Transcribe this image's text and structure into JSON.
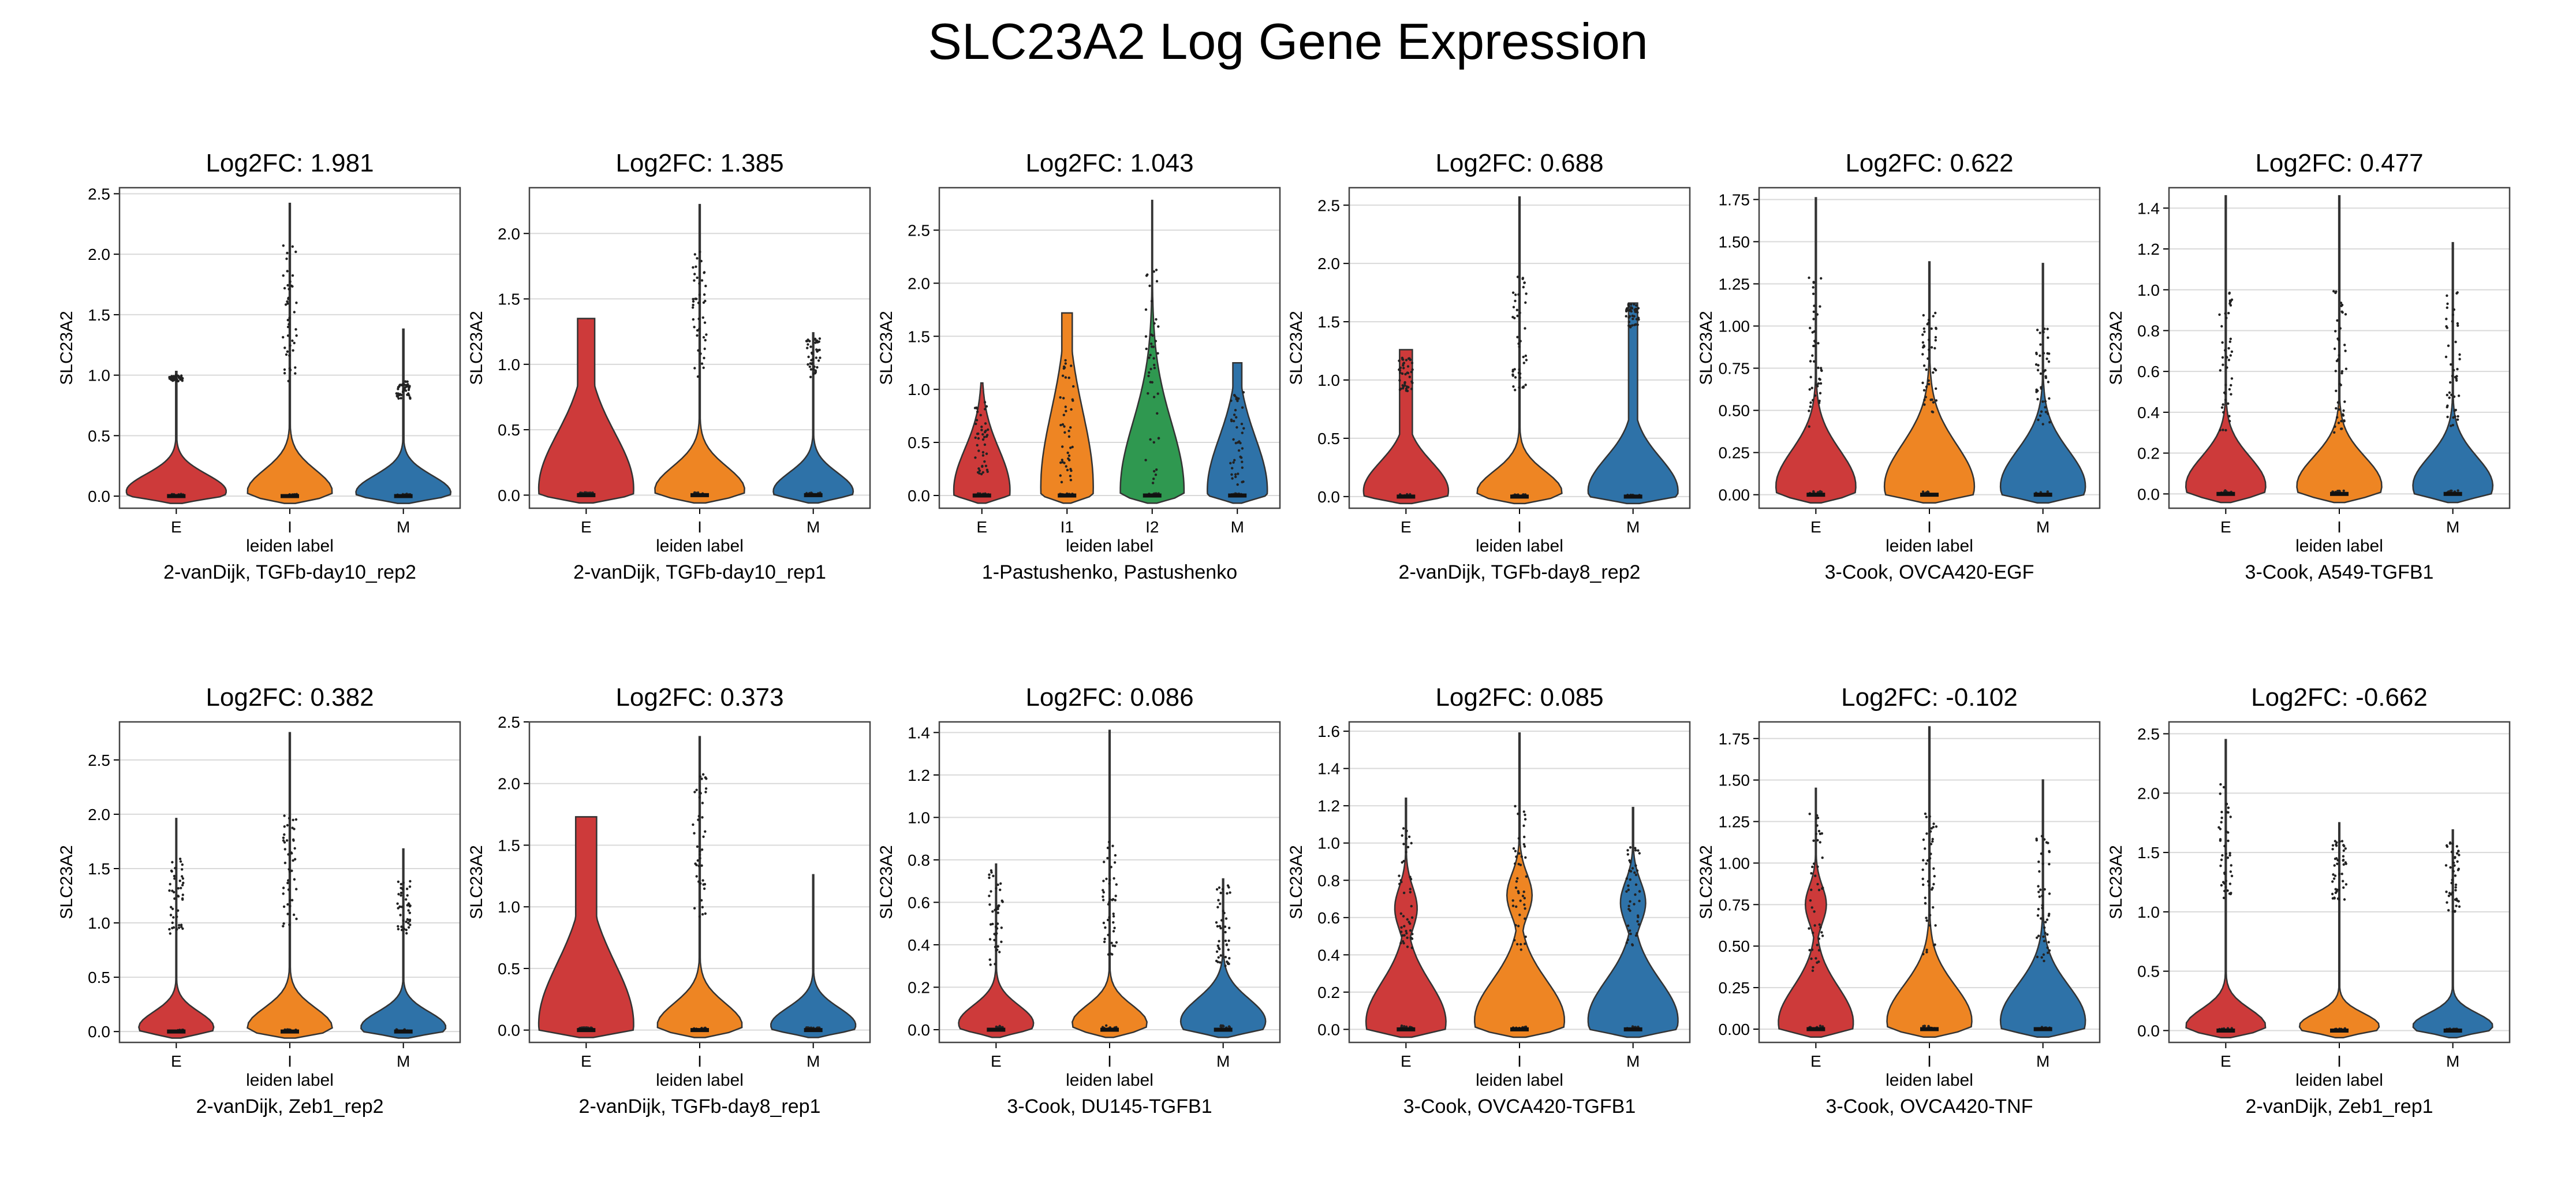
{
  "title": "SLC23A2 Log Gene Expression",
  "colors": {
    "E": "#cd3a3a",
    "I": "#ee8523",
    "I1": "#ee8523",
    "I2": "#2f9850",
    "M": "#2e72a8"
  },
  "chart_data": [
    {
      "type": "violin",
      "title": "Log2FC: 1.981",
      "subtitle": "2-vanDijk, TGFb-day10_rep2",
      "xlabel": "leiden label",
      "ylabel": "SLC23A2",
      "ylim": [
        -0.1,
        2.55
      ],
      "yticks": [
        0.0,
        0.5,
        1.0,
        1.5,
        2.0,
        2.5
      ],
      "ytick_labels": [
        "0.0",
        "0.5",
        "1.0",
        "1.5",
        "2.0",
        "2.5"
      ],
      "grid": true,
      "categories": [
        "E",
        "I",
        "M"
      ],
      "series": [
        {
          "category": "E",
          "max": 1.03,
          "width": 1.0,
          "peak": 0.04,
          "upper": 0.2,
          "high": [
            0.95,
            1.0
          ]
        },
        {
          "category": "I",
          "max": 2.42,
          "width": 0.85,
          "peak": 0.04,
          "upper": 0.25,
          "high": [
            0.9,
            2.1
          ]
        },
        {
          "category": "M",
          "max": 1.38,
          "width": 0.95,
          "peak": 0.03,
          "upper": 0.2,
          "high": [
            0.8,
            0.95
          ]
        }
      ]
    },
    {
      "type": "violin",
      "title": "Log2FC: 1.385",
      "subtitle": "2-vanDijk, TGFb-day10_rep1",
      "xlabel": "leiden label",
      "ylabel": "SLC23A2",
      "ylim": [
        -0.1,
        2.35
      ],
      "yticks": [
        0.0,
        0.5,
        1.0,
        1.5,
        2.0
      ],
      "ytick_labels": [
        "0.0",
        "0.5",
        "1.0",
        "1.5",
        "2.0"
      ],
      "grid": true,
      "categories": [
        "E",
        "I",
        "M"
      ],
      "series": [
        {
          "category": "E",
          "max": 1.35,
          "width": 0.95,
          "peak": 0.05,
          "upper": 0.6,
          "flat": 0.18,
          "high": []
        },
        {
          "category": "I",
          "max": 2.22,
          "width": 0.9,
          "peak": 0.04,
          "upper": 0.25,
          "high": [
            0.9,
            1.9
          ]
        },
        {
          "category": "M",
          "max": 1.24,
          "width": 0.8,
          "peak": 0.03,
          "upper": 0.2,
          "high": [
            0.9,
            1.2
          ]
        }
      ]
    },
    {
      "type": "violin",
      "title": "Log2FC: 1.043",
      "subtitle": "1-Pastushenko, Pastushenko",
      "xlabel": "leiden label",
      "ylabel": "SLC23A2",
      "ylim": [
        -0.12,
        2.9
      ],
      "yticks": [
        0.0,
        0.5,
        1.0,
        1.5,
        2.0,
        2.5
      ],
      "ytick_labels": [
        "0.0",
        "0.5",
        "1.0",
        "1.5",
        "2.0",
        "2.5"
      ],
      "grid": true,
      "categories": [
        "E",
        "I1",
        "I2",
        "M"
      ],
      "series": [
        {
          "category": "E",
          "max": 1.06,
          "width": 0.75,
          "peak": 0.05,
          "upper": 0.55,
          "high": [
            0.2,
            0.9
          ]
        },
        {
          "category": "I1",
          "max": 1.72,
          "width": 0.7,
          "peak": 0.08,
          "upper": 1.0,
          "flat": 0.2,
          "high": [
            0.1,
            1.3
          ]
        },
        {
          "category": "I2",
          "max": 2.78,
          "width": 0.85,
          "peak": 0.05,
          "upper": 0.9,
          "high": [
            0.1,
            2.2
          ]
        },
        {
          "category": "M",
          "max": 1.25,
          "width": 0.8,
          "peak": 0.05,
          "upper": 0.7,
          "flat": 0.15,
          "high": [
            0.1,
            1.0
          ]
        }
      ]
    },
    {
      "type": "violin",
      "title": "Log2FC: 0.688",
      "subtitle": "2-vanDijk, TGFb-day8_rep2",
      "xlabel": "leiden label",
      "ylabel": "SLC23A2",
      "ylim": [
        -0.1,
        2.65
      ],
      "yticks": [
        0.0,
        0.5,
        1.0,
        1.5,
        2.0,
        2.5
      ],
      "ytick_labels": [
        "0.0",
        "0.5",
        "1.0",
        "1.5",
        "2.0",
        "2.5"
      ],
      "grid": true,
      "categories": [
        "E",
        "I",
        "M"
      ],
      "series": [
        {
          "category": "E",
          "max": 1.26,
          "width": 0.85,
          "peak": 0.05,
          "upper": 0.35,
          "flat": 0.15,
          "high": [
            0.9,
            1.2
          ]
        },
        {
          "category": "I",
          "max": 2.57,
          "width": 0.85,
          "peak": 0.04,
          "upper": 0.25,
          "high": [
            0.9,
            1.9
          ]
        },
        {
          "category": "M",
          "max": 1.66,
          "width": 0.9,
          "peak": 0.05,
          "upper": 0.4,
          "flat": 0.1,
          "high": [
            1.45,
            1.65
          ]
        }
      ]
    },
    {
      "type": "violin",
      "title": "Log2FC: 0.622",
      "subtitle": "3-Cook, OVCA420-EGF",
      "xlabel": "leiden label",
      "ylabel": "SLC23A2",
      "ylim": [
        -0.08,
        1.82
      ],
      "yticks": [
        0.0,
        0.25,
        0.5,
        0.75,
        1.0,
        1.25,
        1.5,
        1.75
      ],
      "ytick_labels": [
        "0.00",
        "0.25",
        "0.50",
        "0.75",
        "1.00",
        "1.25",
        "1.50",
        "1.75"
      ],
      "grid": true,
      "categories": [
        "E",
        "I",
        "M"
      ],
      "series": [
        {
          "category": "E",
          "max": 1.76,
          "width": 0.8,
          "peak": 0.05,
          "upper": 0.3,
          "high": [
            0.4,
            1.3
          ]
        },
        {
          "category": "I",
          "max": 1.38,
          "width": 0.9,
          "peak": 0.05,
          "upper": 0.35,
          "high": [
            0.45,
            1.1
          ]
        },
        {
          "category": "M",
          "max": 1.37,
          "width": 0.85,
          "peak": 0.05,
          "upper": 0.3,
          "high": [
            0.4,
            1.0
          ]
        }
      ]
    },
    {
      "type": "violin",
      "title": "Log2FC: 0.477",
      "subtitle": "3-Cook, A549-TGFB1",
      "xlabel": "leiden label",
      "ylabel": "SLC23A2",
      "ylim": [
        -0.07,
        1.5
      ],
      "yticks": [
        0.0,
        0.2,
        0.4,
        0.6,
        0.8,
        1.0,
        1.2,
        1.4
      ],
      "ytick_labels": [
        "0.0",
        "0.2",
        "0.4",
        "0.6",
        "0.8",
        "1.0",
        "1.2",
        "1.4"
      ],
      "grid": true,
      "categories": [
        "E",
        "I",
        "M"
      ],
      "series": [
        {
          "category": "E",
          "max": 1.46,
          "width": 0.8,
          "peak": 0.04,
          "upper": 0.2,
          "high": [
            0.3,
            1.0
          ]
        },
        {
          "category": "I",
          "max": 1.46,
          "width": 0.85,
          "peak": 0.04,
          "upper": 0.2,
          "high": [
            0.3,
            1.0
          ]
        },
        {
          "category": "M",
          "max": 1.23,
          "width": 0.8,
          "peak": 0.04,
          "upper": 0.2,
          "high": [
            0.3,
            1.0
          ]
        }
      ]
    },
    {
      "type": "violin",
      "title": "Log2FC: 0.382",
      "subtitle": "2-vanDijk, Zeb1_rep2",
      "xlabel": "leiden label",
      "ylabel": "SLC23A2",
      "ylim": [
        -0.1,
        2.85
      ],
      "yticks": [
        0.0,
        0.5,
        1.0,
        1.5,
        2.0,
        2.5
      ],
      "ytick_labels": [
        "0.0",
        "0.5",
        "1.0",
        "1.5",
        "2.0",
        "2.5"
      ],
      "grid": true,
      "categories": [
        "E",
        "I",
        "M"
      ],
      "series": [
        {
          "category": "E",
          "max": 1.96,
          "width": 0.75,
          "peak": 0.04,
          "upper": 0.2,
          "high": [
            0.9,
            1.6
          ]
        },
        {
          "category": "I",
          "max": 2.75,
          "width": 0.85,
          "peak": 0.04,
          "upper": 0.25,
          "high": [
            0.9,
            2.0
          ]
        },
        {
          "category": "M",
          "max": 1.68,
          "width": 0.85,
          "peak": 0.04,
          "upper": 0.2,
          "high": [
            0.9,
            1.4
          ]
        }
      ]
    },
    {
      "type": "violin",
      "title": "Log2FC: 0.373",
      "subtitle": "2-vanDijk, TGFb-day8_rep1",
      "xlabel": "leiden label",
      "ylabel": "SLC23A2",
      "ylim": [
        -0.1,
        2.5
      ],
      "yticks": [
        0.0,
        0.5,
        1.0,
        1.5,
        2.0,
        2.5
      ],
      "ytick_labels": [
        "0.0",
        "0.5",
        "1.0",
        "1.5",
        "2.0",
        "2.5"
      ],
      "grid": true,
      "categories": [
        "E",
        "I",
        "M"
      ],
      "series": [
        {
          "category": "E",
          "max": 1.73,
          "width": 0.95,
          "peak": 0.05,
          "upper": 0.7,
          "flat": 0.22,
          "high": []
        },
        {
          "category": "I",
          "max": 2.38,
          "width": 0.85,
          "peak": 0.04,
          "upper": 0.25,
          "high": [
            0.9,
            2.1
          ]
        },
        {
          "category": "M",
          "max": 1.26,
          "width": 0.85,
          "peak": 0.04,
          "upper": 0.2,
          "high": []
        }
      ]
    },
    {
      "type": "violin",
      "title": "Log2FC: 0.086",
      "subtitle": "3-Cook, DU145-TGFB1",
      "xlabel": "leiden label",
      "ylabel": "SLC23A2",
      "ylim": [
        -0.06,
        1.45
      ],
      "yticks": [
        0.0,
        0.2,
        0.4,
        0.6,
        0.8,
        1.0,
        1.2,
        1.4
      ],
      "ytick_labels": [
        "0.0",
        "0.2",
        "0.4",
        "0.6",
        "0.8",
        "1.0",
        "1.2",
        "1.4"
      ],
      "grid": true,
      "categories": [
        "E",
        "I",
        "M"
      ],
      "series": [
        {
          "category": "E",
          "max": 0.78,
          "width": 0.75,
          "peak": 0.03,
          "upper": 0.12,
          "high": [
            0.3,
            0.75
          ]
        },
        {
          "category": "I",
          "max": 1.41,
          "width": 0.75,
          "peak": 0.03,
          "upper": 0.12,
          "high": [
            0.3,
            0.9
          ]
        },
        {
          "category": "M",
          "max": 0.71,
          "width": 0.85,
          "peak": 0.04,
          "upper": 0.15,
          "high": [
            0.3,
            0.7
          ]
        }
      ]
    },
    {
      "type": "violin",
      "title": "Log2FC: 0.085",
      "subtitle": "3-Cook, OVCA420-TGFB1",
      "xlabel": "leiden label",
      "ylabel": "SLC23A2",
      "ylim": [
        -0.07,
        1.65
      ],
      "yticks": [
        0.0,
        0.2,
        0.4,
        0.6,
        0.8,
        1.0,
        1.2,
        1.4,
        1.6
      ],
      "ytick_labels": [
        "0.0",
        "0.2",
        "0.4",
        "0.6",
        "0.8",
        "1.0",
        "1.2",
        "1.4",
        "1.6"
      ],
      "grid": true,
      "categories": [
        "E",
        "I",
        "M"
      ],
      "series": [
        {
          "category": "E",
          "max": 1.24,
          "width": 0.8,
          "peak": 0.04,
          "upper": 0.3,
          "bulge": 0.65,
          "high": [
            0.4,
            1.1
          ]
        },
        {
          "category": "I",
          "max": 1.59,
          "width": 0.9,
          "peak": 0.05,
          "upper": 0.3,
          "bulge": 0.72,
          "high": [
            0.4,
            1.2
          ]
        },
        {
          "category": "M",
          "max": 1.19,
          "width": 0.9,
          "peak": 0.05,
          "upper": 0.3,
          "bulge": 0.68,
          "high": [
            0.4,
            1.0
          ]
        }
      ]
    },
    {
      "type": "violin",
      "title": "Log2FC: -0.102",
      "subtitle": "3-Cook, OVCA420-TNF",
      "xlabel": "leiden label",
      "ylabel": "SLC23A2",
      "ylim": [
        -0.08,
        1.85
      ],
      "yticks": [
        0.0,
        0.25,
        0.5,
        0.75,
        1.0,
        1.25,
        1.5,
        1.75
      ],
      "ytick_labels": [
        "0.00",
        "0.25",
        "0.50",
        "0.75",
        "1.00",
        "1.25",
        "1.50",
        "1.75"
      ],
      "grid": true,
      "categories": [
        "E",
        "I",
        "M"
      ],
      "series": [
        {
          "category": "E",
          "max": 1.45,
          "width": 0.75,
          "peak": 0.04,
          "upper": 0.3,
          "bulge": 0.75,
          "high": [
            0.35,
            1.3
          ]
        },
        {
          "category": "I",
          "max": 1.82,
          "width": 0.85,
          "peak": 0.05,
          "upper": 0.3,
          "high": [
            0.4,
            1.3
          ]
        },
        {
          "category": "M",
          "max": 1.5,
          "width": 0.85,
          "peak": 0.05,
          "upper": 0.3,
          "high": [
            0.4,
            1.2
          ]
        }
      ]
    },
    {
      "type": "violin",
      "title": "Log2FC: -0.662",
      "subtitle": "2-vanDijk, Zeb1_rep1",
      "xlabel": "leiden label",
      "ylabel": "SLC23A2",
      "ylim": [
        -0.1,
        2.6
      ],
      "yticks": [
        0.0,
        0.5,
        1.0,
        1.5,
        2.0,
        2.5
      ],
      "ytick_labels": [
        "0.0",
        "0.5",
        "1.0",
        "1.5",
        "2.0",
        "2.5"
      ],
      "grid": true,
      "categories": [
        "E",
        "I",
        "M"
      ],
      "series": [
        {
          "category": "E",
          "max": 2.45,
          "width": 0.8,
          "peak": 0.04,
          "upper": 0.2,
          "high": [
            1.1,
            2.1
          ]
        },
        {
          "category": "I",
          "max": 1.75,
          "width": 0.8,
          "peak": 0.04,
          "upper": 0.15,
          "high": [
            1.1,
            1.6
          ]
        },
        {
          "category": "M",
          "max": 1.69,
          "width": 0.8,
          "peak": 0.04,
          "upper": 0.15,
          "high": [
            1.0,
            1.6
          ]
        }
      ]
    }
  ]
}
